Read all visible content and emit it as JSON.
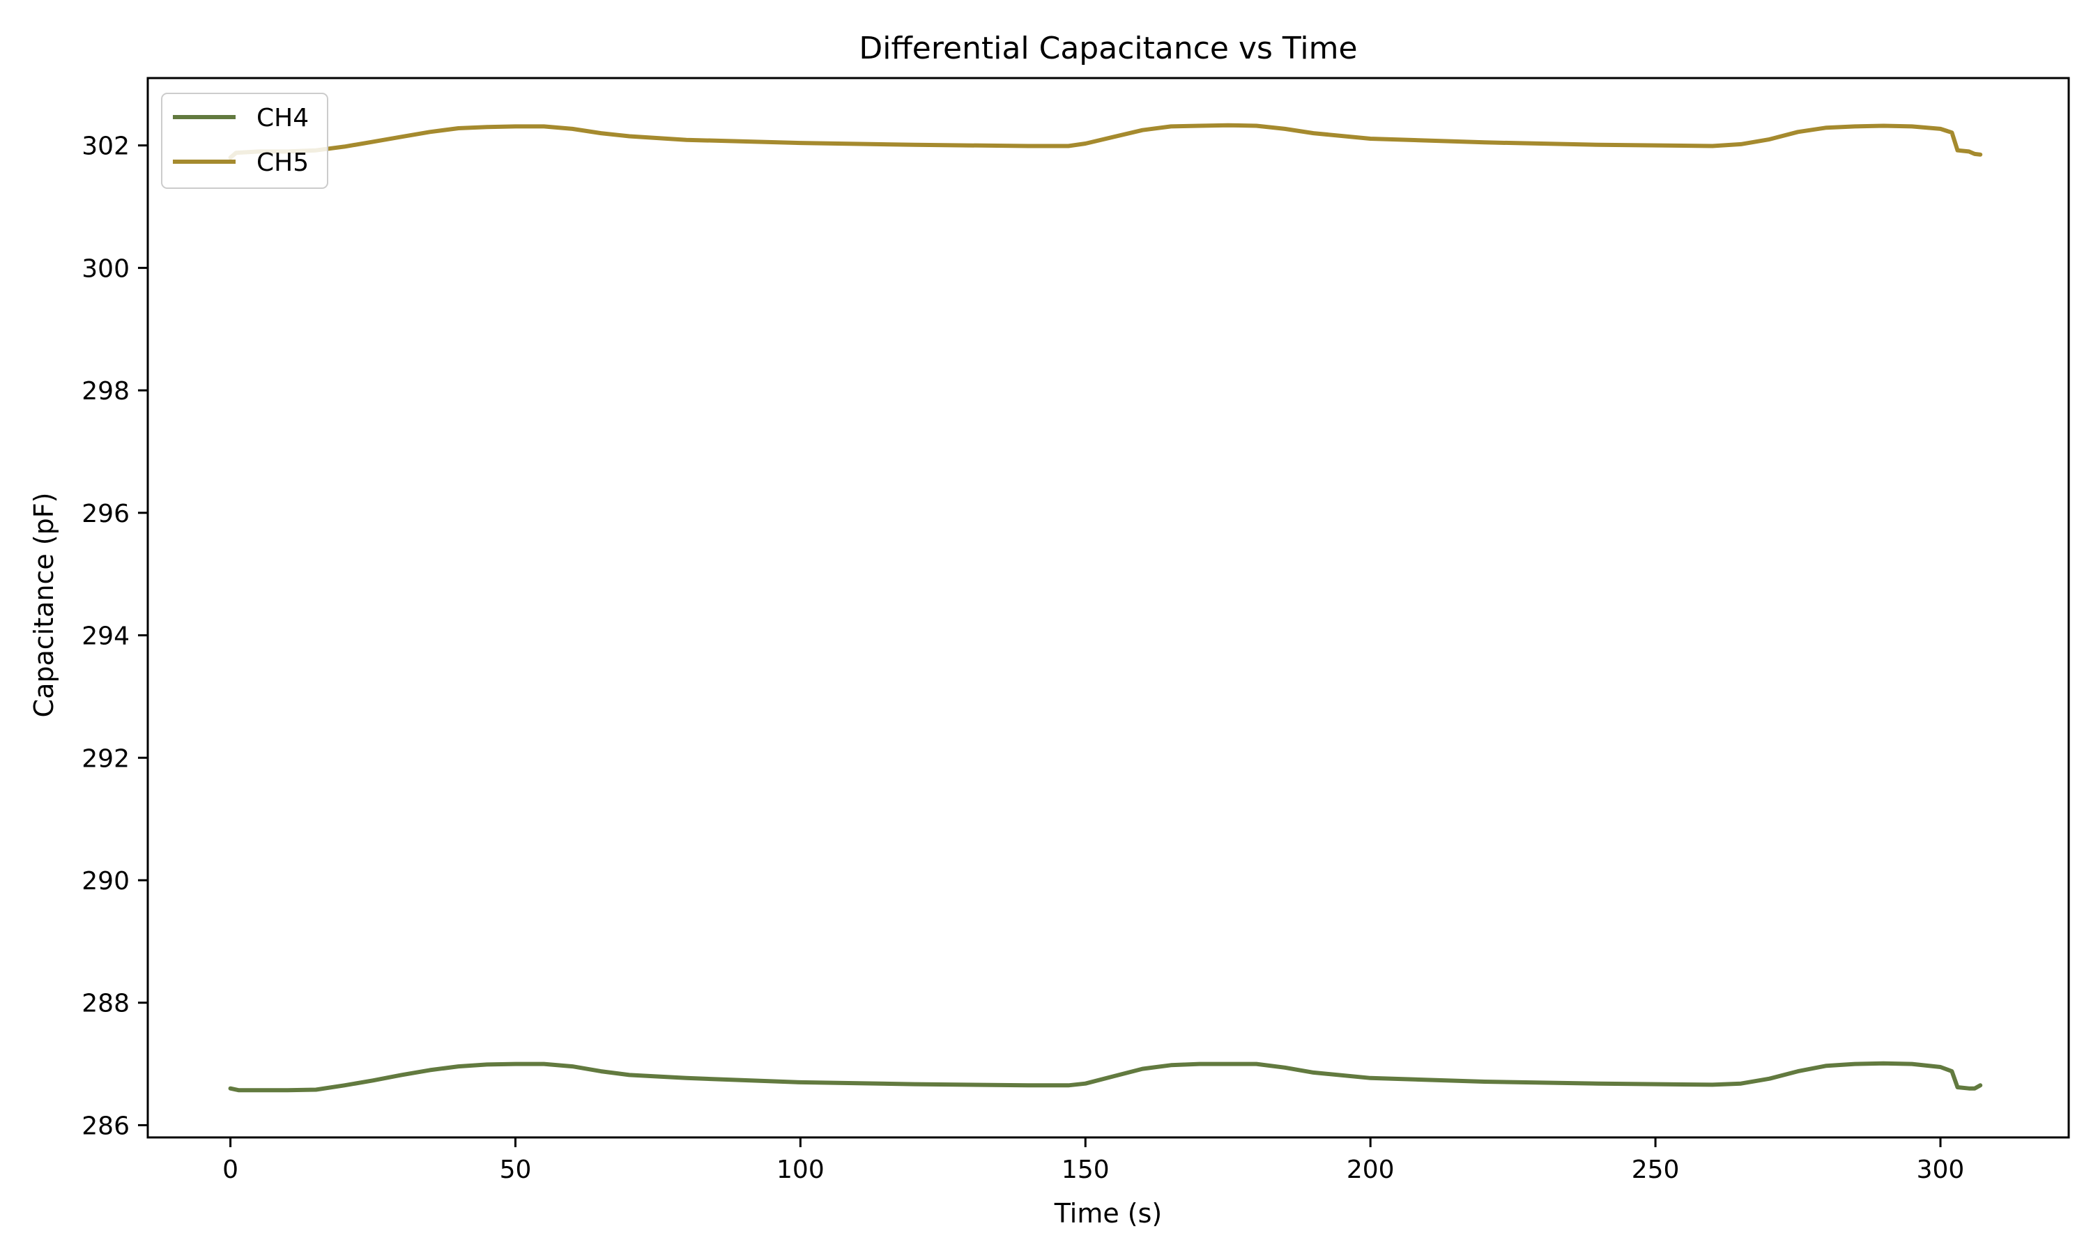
{
  "chart_data": {
    "type": "line",
    "title": "Differential Capacitance vs Time",
    "xlabel": "Time (s)",
    "ylabel": "Capacitance (pF)",
    "xlim": [
      -14.5,
      322.5
    ],
    "ylim": [
      285.8,
      303.1
    ],
    "xticks": [
      0,
      50,
      100,
      150,
      200,
      250,
      300
    ],
    "yticks": [
      286,
      288,
      290,
      292,
      294,
      296,
      298,
      300,
      302
    ],
    "grid": false,
    "legend_position": "top-left",
    "series": [
      {
        "name": "CH4",
        "color": "#627a3f",
        "x": [
          0,
          1.5,
          5,
          10,
          15,
          20,
          25,
          30,
          35,
          40,
          45,
          50,
          55,
          60,
          65,
          70,
          80,
          100,
          120,
          140,
          147,
          150,
          155,
          160,
          165,
          170,
          175,
          180,
          185,
          190,
          200,
          220,
          240,
          260,
          265,
          270,
          275,
          280,
          285,
          290,
          295,
          300,
          302,
          303,
          305,
          306,
          307
        ],
        "y": [
          286.6,
          286.57,
          286.57,
          286.57,
          286.58,
          286.65,
          286.73,
          286.82,
          286.9,
          286.96,
          286.99,
          287.0,
          287.0,
          286.96,
          286.88,
          286.82,
          286.77,
          286.7,
          286.67,
          286.65,
          286.65,
          286.68,
          286.8,
          286.92,
          286.98,
          287.0,
          287.0,
          287.0,
          286.94,
          286.86,
          286.77,
          286.71,
          286.68,
          286.66,
          286.68,
          286.76,
          286.88,
          286.97,
          287.0,
          287.01,
          287.0,
          286.95,
          286.88,
          286.62,
          286.6,
          286.6,
          286.65
        ]
      },
      {
        "name": "CH5",
        "color": "#a58a2e",
        "x": [
          0,
          1,
          5,
          10,
          15,
          20,
          25,
          30,
          35,
          40,
          45,
          50,
          55,
          60,
          65,
          70,
          80,
          100,
          120,
          140,
          147,
          150,
          155,
          160,
          165,
          170,
          175,
          180,
          185,
          190,
          200,
          220,
          240,
          260,
          265,
          270,
          275,
          280,
          285,
          290,
          295,
          300,
          302,
          303,
          305,
          306,
          307
        ],
        "y": [
          301.8,
          301.88,
          301.9,
          301.9,
          301.92,
          301.98,
          302.06,
          302.14,
          302.22,
          302.28,
          302.3,
          302.31,
          302.31,
          302.27,
          302.2,
          302.15,
          302.09,
          302.04,
          302.01,
          301.99,
          301.99,
          302.03,
          302.14,
          302.25,
          302.31,
          302.32,
          302.33,
          302.32,
          302.27,
          302.2,
          302.11,
          302.05,
          302.01,
          301.99,
          302.02,
          302.1,
          302.22,
          302.29,
          302.31,
          302.32,
          302.31,
          302.27,
          302.21,
          301.92,
          301.9,
          301.86,
          301.85
        ]
      }
    ]
  }
}
